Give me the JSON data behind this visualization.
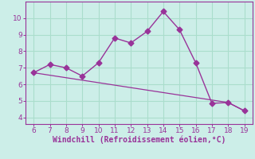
{
  "title": "",
  "xlabel": "Windchill (Refroidissement éolien,°C)",
  "bg_color": "#cceee8",
  "grid_color": "#aaddcc",
  "line_color": "#993399",
  "line1_x": [
    6,
    7,
    8,
    9,
    10,
    11,
    12,
    13,
    14,
    15,
    16,
    17,
    18,
    19
  ],
  "line1_y": [
    6.7,
    7.2,
    7.0,
    6.5,
    7.3,
    8.8,
    8.5,
    9.2,
    10.4,
    9.3,
    7.3,
    4.85,
    4.9,
    4.4
  ],
  "line2_x": [
    6,
    7,
    8,
    9,
    10,
    11,
    12,
    13,
    14,
    15,
    16,
    17,
    18,
    19
  ],
  "line2_y": [
    6.7,
    6.55,
    6.4,
    6.25,
    6.1,
    5.95,
    5.8,
    5.65,
    5.5,
    5.35,
    5.2,
    5.05,
    4.9,
    4.4
  ],
  "xlim": [
    5.5,
    19.5
  ],
  "ylim": [
    3.6,
    11.0
  ],
  "xticks": [
    6,
    7,
    8,
    9,
    10,
    11,
    12,
    13,
    14,
    15,
    16,
    17,
    18,
    19
  ],
  "yticks": [
    4,
    5,
    6,
    7,
    8,
    9,
    10
  ],
  "tick_fontsize": 6.5,
  "xlabel_fontsize": 7,
  "marker_size": 3.5
}
